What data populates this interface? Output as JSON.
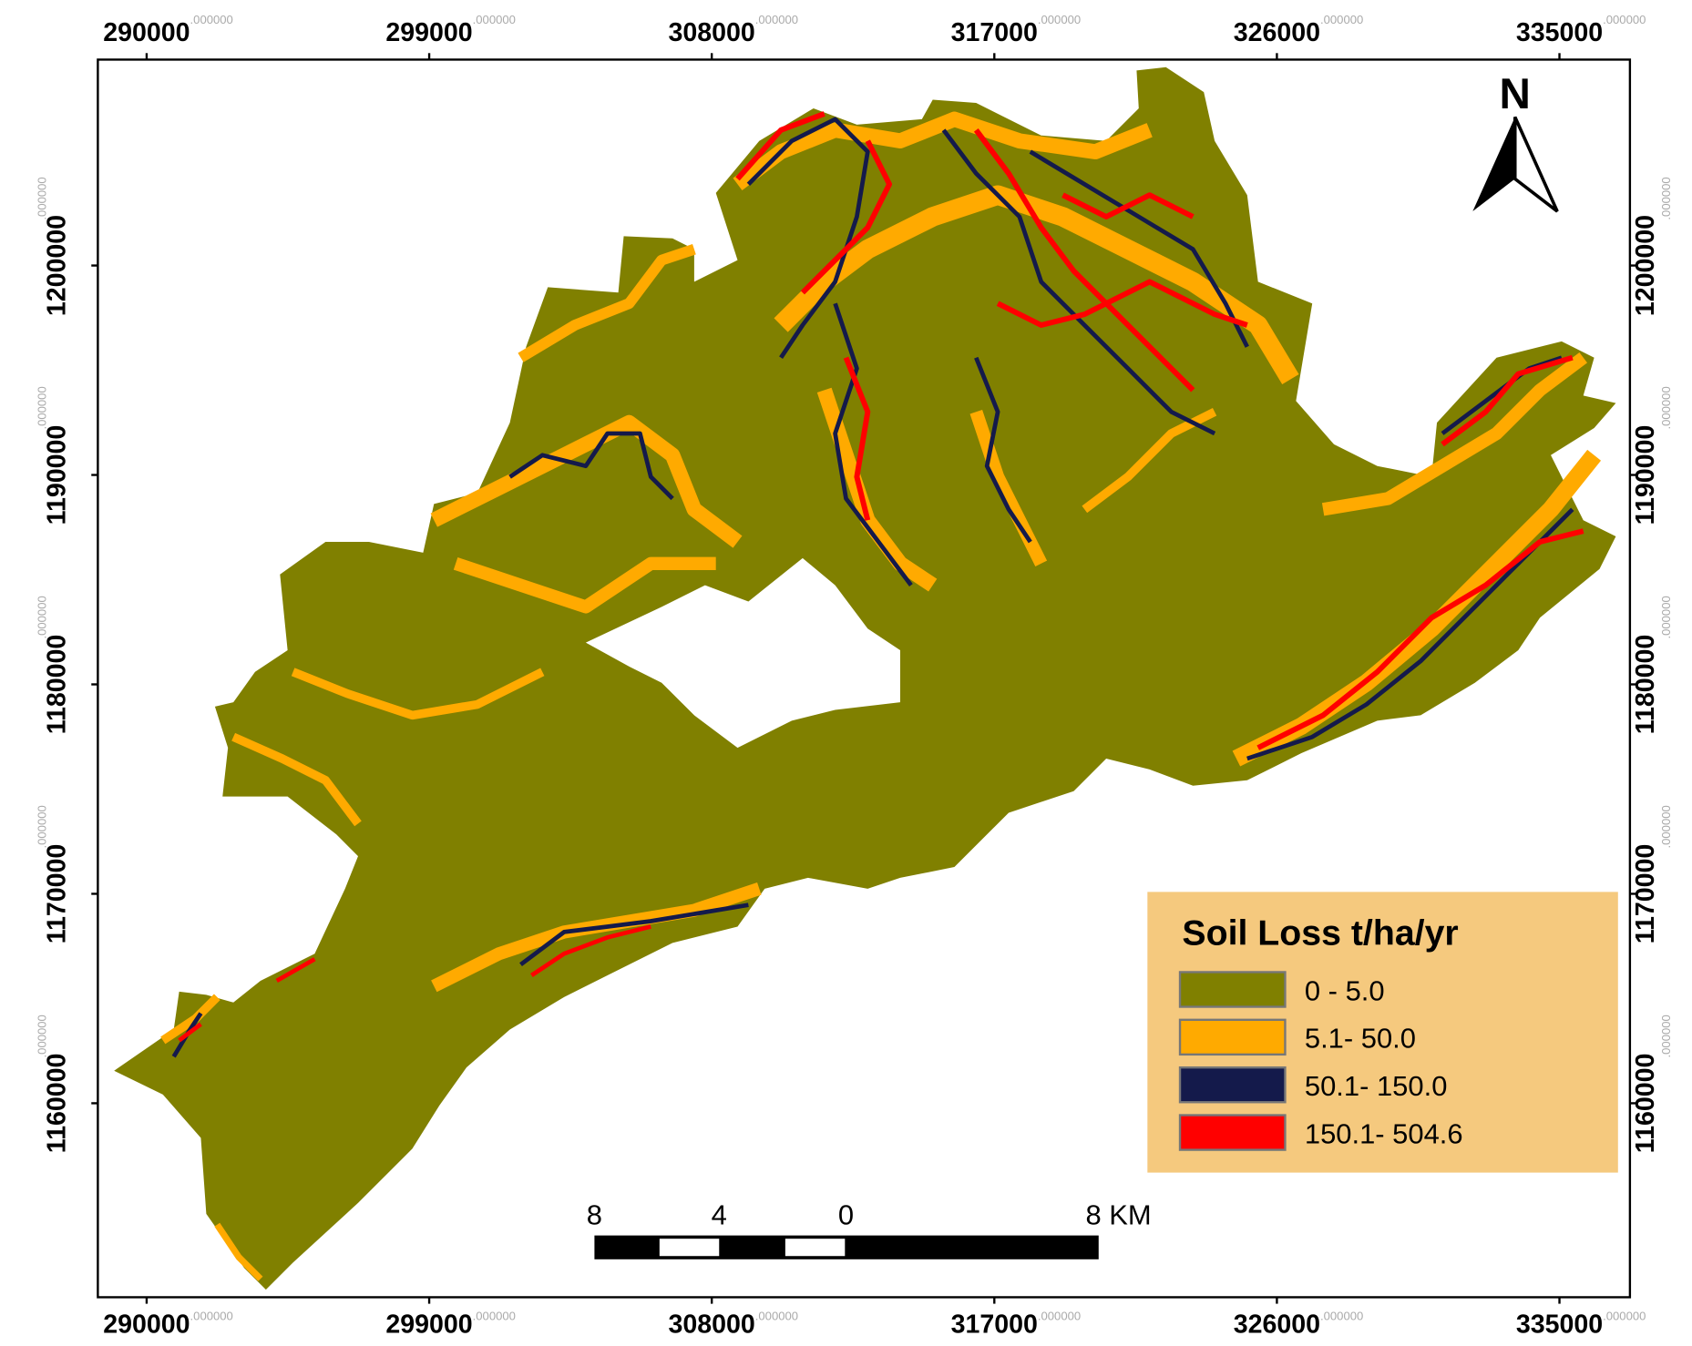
{
  "grid": {
    "x_labels": [
      290000,
      299000,
      308000,
      317000,
      326000,
      335000
    ],
    "y_labels": [
      1200000,
      1190000,
      1180000,
      1170000,
      1160000
    ],
    "suffix": ".000000"
  },
  "north_arrow": {
    "label": "N"
  },
  "legend": {
    "title": "Soil Loss t/ha/yr",
    "items": [
      {
        "label": "0 - 5.0",
        "color": "#808000"
      },
      {
        "label": "5.1- 50.0",
        "color": "#FFAA00"
      },
      {
        "label": "50.1- 150.0",
        "color": "#141A4B"
      },
      {
        "label": "150.1- 504.6",
        "color": "#FF0000"
      }
    ]
  },
  "scale_bar": {
    "labels": [
      "8",
      "4",
      "0",
      "8 KM"
    ]
  }
}
